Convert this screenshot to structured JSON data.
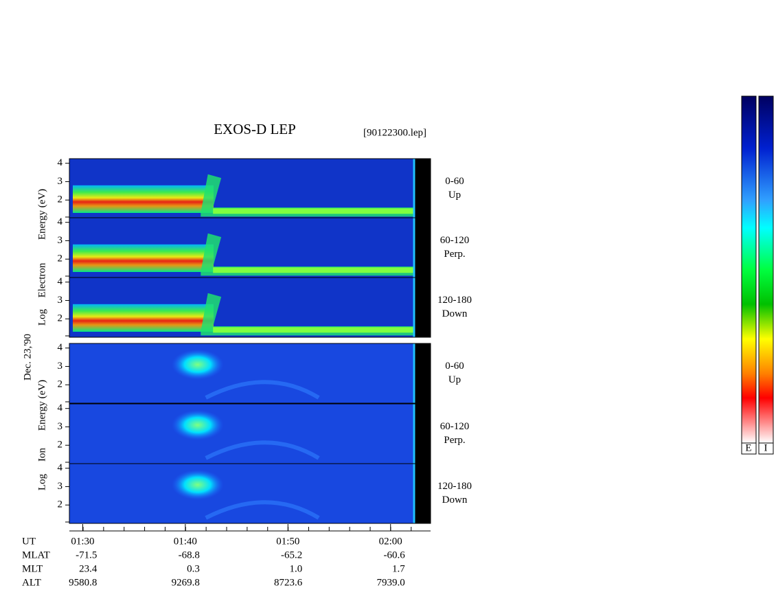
{
  "chart_data": {
    "type": "spectrogram",
    "title": "EXOS-D LEP",
    "file": "[90122300.lep]",
    "date": "Dec. 23,'90",
    "electron_ylabel": [
      "Log",
      "Electron",
      "Energy (eV)"
    ],
    "ion_ylabel": [
      "Log",
      "Ion",
      "Energy (eV)"
    ],
    "ylim": [
      1,
      4.25
    ],
    "yticks": [
      2,
      3,
      4
    ],
    "xlim": [
      88.7,
      123.9
    ],
    "xticks": [
      {
        "value": 90,
        "label": "01:30"
      },
      {
        "value": 100,
        "label": "01:40"
      },
      {
        "value": 110,
        "label": "01:50"
      },
      {
        "value": 120,
        "label": "02:00"
      }
    ],
    "panels": [
      {
        "species": "electron",
        "range": "0-60",
        "direction": "Up"
      },
      {
        "species": "electron",
        "range": "60-120",
        "direction": "Perp."
      },
      {
        "species": "electron",
        "range": "120-180",
        "direction": "Down"
      },
      {
        "species": "ion",
        "range": "0-60",
        "direction": "Up"
      },
      {
        "species": "ion",
        "range": "60-120",
        "direction": "Perp."
      },
      {
        "species": "ion",
        "range": "120-180",
        "direction": "Down"
      }
    ],
    "orbit": [
      {
        "label": "UT"
      },
      {
        "label": "MLAT",
        "values": [
          "-71.5",
          "-68.8",
          "-65.2",
          "-60.6"
        ]
      },
      {
        "label": "MLT",
        "values": [
          "23.4",
          "0.3",
          "1.0",
          "1.7"
        ]
      },
      {
        "label": "ALT",
        "values": [
          "9580.8",
          "9269.8",
          "8723.6",
          "7939.0"
        ]
      }
    ],
    "colorbar_labels": [
      "E",
      "I"
    ]
  }
}
